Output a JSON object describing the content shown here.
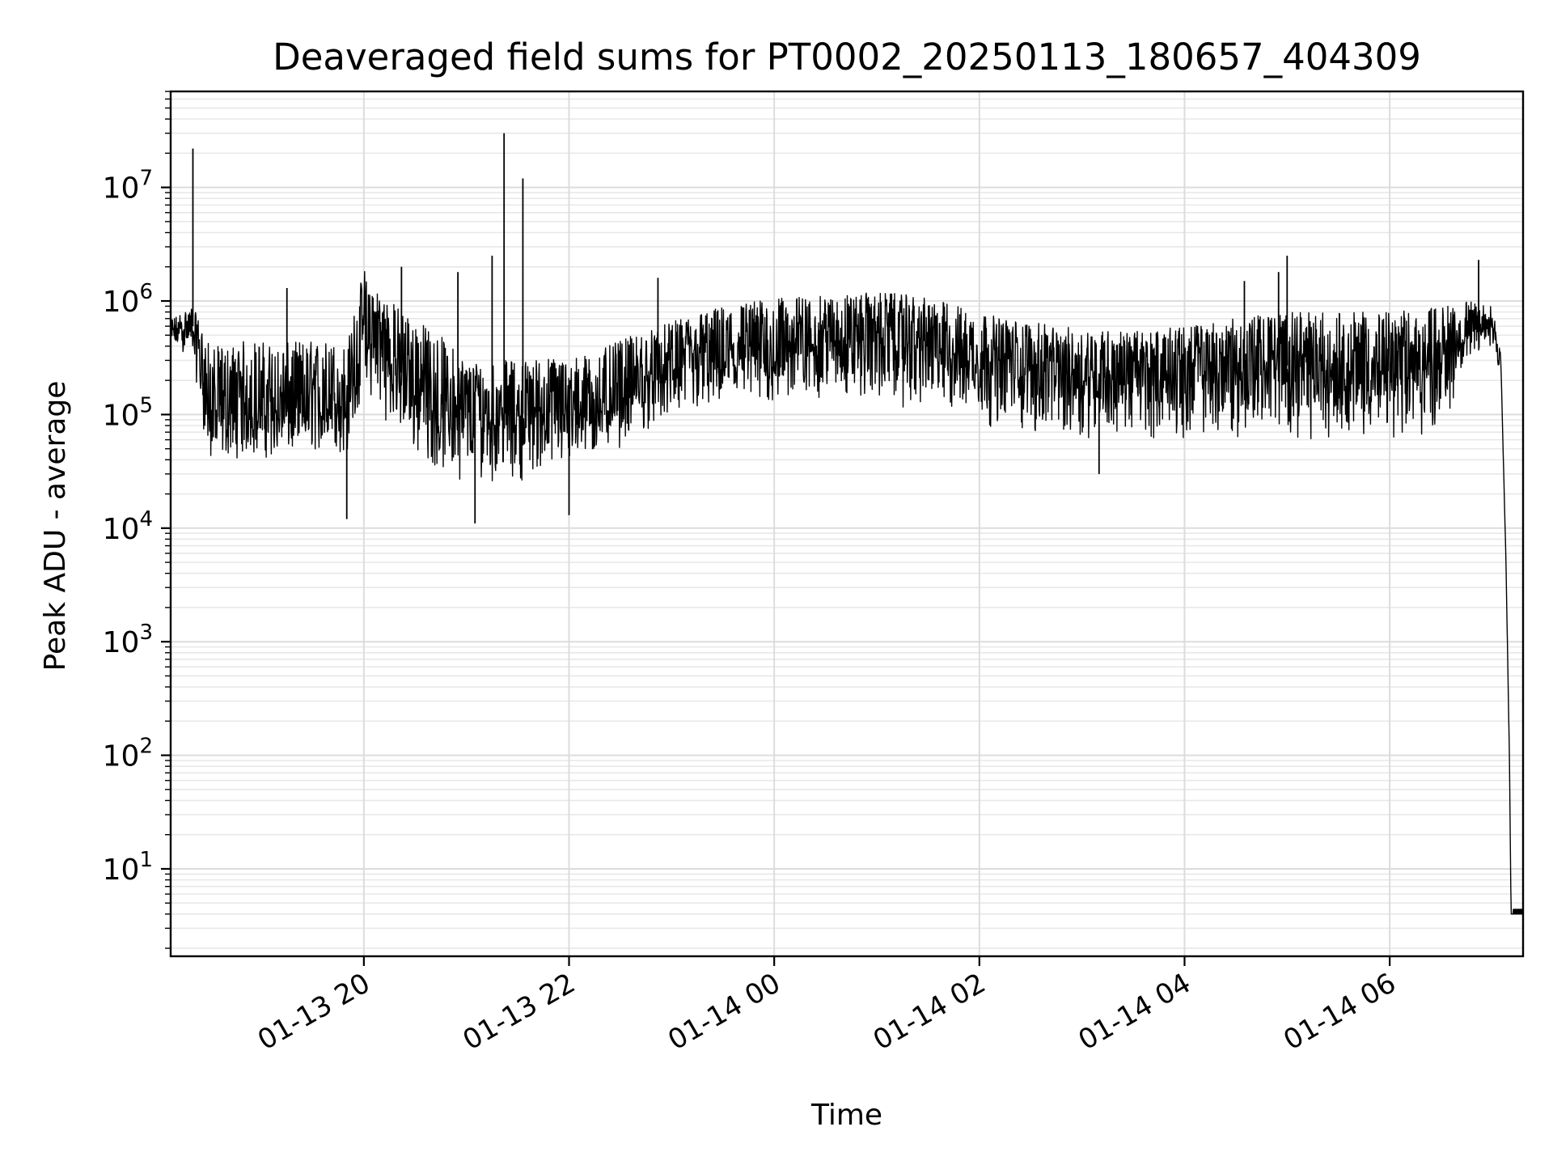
{
  "chart_data": {
    "type": "line",
    "title": "Deaveraged field sums for PT0002_20250113_180657_404309",
    "xlabel": "Time",
    "ylabel": "Peak ADU - average",
    "yscale": "log",
    "ylim": [
      1.7,
      70000000
    ],
    "xlim": [
      "2025-01-13 18:07",
      "2025-01-14 07:18"
    ],
    "grid": {
      "major": true,
      "minor": true
    },
    "line_color": "#000000",
    "x_ticks": [
      {
        "value": "2025-01-13 20:00",
        "label": "01-13 20"
      },
      {
        "value": "2025-01-13 22:00",
        "label": "01-13 22"
      },
      {
        "value": "2025-01-14 00:00",
        "label": "01-14 00"
      },
      {
        "value": "2025-01-14 02:00",
        "label": "01-14 02"
      },
      {
        "value": "2025-01-14 04:00",
        "label": "01-14 04"
      },
      {
        "value": "2025-01-14 06:00",
        "label": "01-14 06"
      }
    ],
    "y_ticks": [
      {
        "value": 10,
        "base": "10",
        "exp": "1"
      },
      {
        "value": 100,
        "base": "10",
        "exp": "2"
      },
      {
        "value": 1000,
        "base": "10",
        "exp": "3"
      },
      {
        "value": 10000,
        "base": "10",
        "exp": "4"
      },
      {
        "value": 100000,
        "base": "10",
        "exp": "5"
      },
      {
        "value": 1000000,
        "base": "10",
        "exp": "6"
      },
      {
        "value": 10000000,
        "base": "10",
        "exp": "7"
      }
    ],
    "series": [
      {
        "x": [
          "2025-01-13 18:07",
          "2025-01-13 18:20",
          "2025-01-13 18:30",
          "2025-01-13 18:40",
          "2025-01-13 18:50",
          "2025-01-13 19:00",
          "2025-01-13 19:10",
          "2025-01-13 19:20",
          "2025-01-13 19:30",
          "2025-01-13 19:40",
          "2025-01-13 19:50",
          "2025-01-13 20:00",
          "2025-01-13 20:10",
          "2025-01-13 20:20",
          "2025-01-13 20:30",
          "2025-01-13 20:45",
          "2025-01-13 21:00",
          "2025-01-13 21:15",
          "2025-01-13 21:30",
          "2025-01-13 21:45",
          "2025-01-13 22:00",
          "2025-01-13 22:15",
          "2025-01-13 22:30",
          "2025-01-13 22:45",
          "2025-01-13 23:00",
          "2025-01-13 23:15",
          "2025-01-13 23:30",
          "2025-01-13 23:45",
          "2025-01-14 00:00",
          "2025-01-14 00:15",
          "2025-01-14 00:30",
          "2025-01-14 00:45",
          "2025-01-14 01:00",
          "2025-01-14 01:15",
          "2025-01-14 01:30",
          "2025-01-14 01:45",
          "2025-01-14 02:00",
          "2025-01-14 02:15",
          "2025-01-14 02:30",
          "2025-01-14 02:45",
          "2025-01-14 03:00",
          "2025-01-14 03:15",
          "2025-01-14 03:30",
          "2025-01-14 03:45",
          "2025-01-14 04:00",
          "2025-01-14 04:15",
          "2025-01-14 04:30",
          "2025-01-14 04:45",
          "2025-01-14 05:00",
          "2025-01-14 05:15",
          "2025-01-14 05:30",
          "2025-01-14 05:45",
          "2025-01-14 06:00",
          "2025-01-14 06:15",
          "2025-01-14 06:30",
          "2025-01-14 06:45",
          "2025-01-14 07:00",
          "2025-01-14 07:05",
          "2025-01-14 07:08",
          "2025-01-14 07:10",
          "2025-01-14 07:11",
          "2025-01-14 07:12",
          "2025-01-14 07:18"
        ],
        "median": [
          500000,
          600000,
          100000,
          100000,
          110000,
          110000,
          100000,
          110000,
          110000,
          120000,
          130000,
          450000,
          400000,
          250000,
          180000,
          110000,
          100000,
          100000,
          100000,
          110000,
          110000,
          110000,
          140000,
          180000,
          250000,
          300000,
          320000,
          330000,
          350000,
          420000,
          450000,
          480000,
          500000,
          450000,
          420000,
          360000,
          300000,
          280000,
          260000,
          240000,
          230000,
          230000,
          220000,
          230000,
          240000,
          240000,
          250000,
          260000,
          270000,
          260000,
          250000,
          250000,
          250000,
          270000,
          300000,
          500000,
          600000,
          300000,
          5000,
          100,
          4,
          4,
          4
        ],
        "low": [
          400000,
          300000,
          30000,
          40000,
          40000,
          40000,
          40000,
          40000,
          45000,
          45000,
          40000,
          150000,
          100000,
          60000,
          40000,
          30000,
          25000,
          25000,
          25000,
          30000,
          30000,
          40000,
          50000,
          70000,
          80000,
          90000,
          100000,
          100000,
          110000,
          120000,
          130000,
          130000,
          120000,
          110000,
          100000,
          90000,
          80000,
          70000,
          60000,
          60000,
          60000,
          60000,
          60000,
          60000,
          60000,
          60000,
          60000,
          60000,
          60000,
          60000,
          60000,
          60000,
          60000,
          60000,
          60000,
          300000,
          400000,
          200000,
          3000,
          80,
          4,
          4,
          4
        ],
        "high": [
          700000,
          900000,
          400000,
          400000,
          450000,
          450000,
          400000,
          450000,
          450000,
          450000,
          400000,
          2000000,
          1200000,
          900000,
          700000,
          500000,
          300000,
          300000,
          300000,
          320000,
          320000,
          350000,
          450000,
          550000,
          650000,
          800000,
          900000,
          1000000,
          1050000,
          1100000,
          1100000,
          1150000,
          1200000,
          1150000,
          1050000,
          950000,
          800000,
          700000,
          650000,
          600000,
          580000,
          560000,
          540000,
          560000,
          600000,
          650000,
          700000,
          750000,
          800000,
          800000,
          800000,
          800000,
          800000,
          850000,
          900000,
          1000000,
          900000,
          400000,
          8000,
          200,
          4,
          4,
          4
        ]
      }
    ],
    "spikes": [
      {
        "x": "2025-01-13 18:20",
        "y": 22000000
      },
      {
        "x": "2025-01-13 19:15",
        "y": 1300000
      },
      {
        "x": "2025-01-13 19:50",
        "y": 12000
      },
      {
        "x": "2025-01-13 20:22",
        "y": 2000000
      },
      {
        "x": "2025-01-13 20:55",
        "y": 1800000
      },
      {
        "x": "2025-01-13 21:05",
        "y": 11000
      },
      {
        "x": "2025-01-13 21:15",
        "y": 2500000
      },
      {
        "x": "2025-01-13 21:22",
        "y": 30000000
      },
      {
        "x": "2025-01-13 21:33",
        "y": 12000000
      },
      {
        "x": "2025-01-13 22:00",
        "y": 13000
      },
      {
        "x": "2025-01-13 22:52",
        "y": 1600000
      },
      {
        "x": "2025-01-14 03:10",
        "y": 30000
      },
      {
        "x": "2025-01-14 04:35",
        "y": 1500000
      },
      {
        "x": "2025-01-14 04:55",
        "y": 1800000
      },
      {
        "x": "2025-01-14 05:00",
        "y": 2500000
      },
      {
        "x": "2025-01-14 06:52",
        "y": 2300000
      }
    ]
  }
}
